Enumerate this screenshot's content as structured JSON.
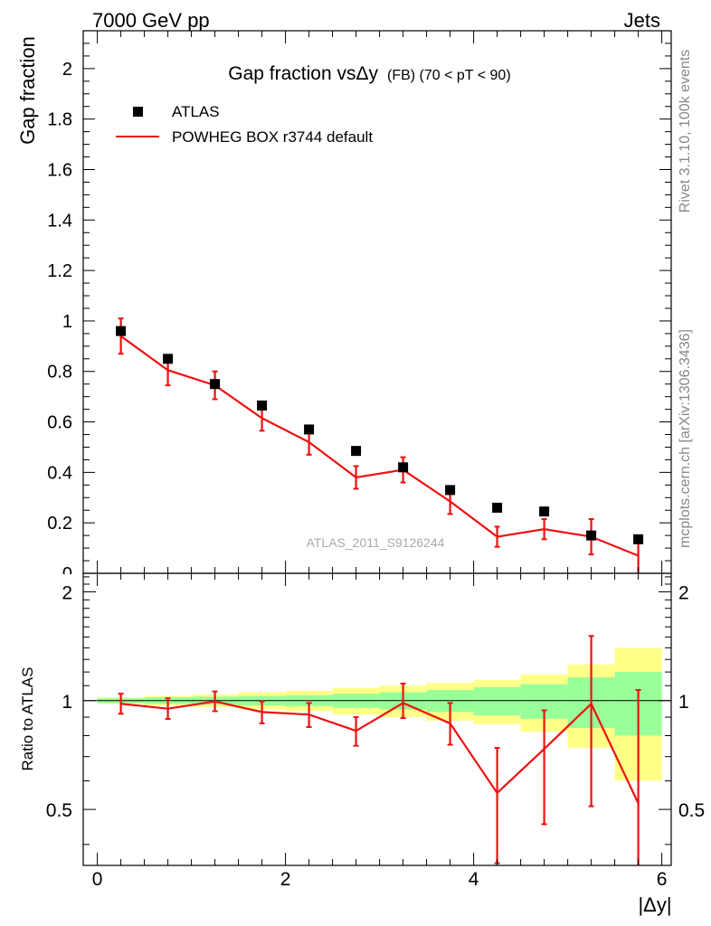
{
  "header": {
    "left": "7000 GeV pp",
    "right": "Jets"
  },
  "side_labels": {
    "rivet": "Rivet 3.1.10,  100k events",
    "mcplots": "mcplots.cern.ch [arXiv:1306.3436]"
  },
  "watermark": "ATLAS_2011_S9126244",
  "colors": {
    "mc": "#ee1111",
    "data": "#000000",
    "band_inner": "#99ff99",
    "band_outer": "#ffff88"
  },
  "chart_data": [
    {
      "type": "scatter",
      "title_main": "Gap fraction vsΔy",
      "title_suffix": "(FB) (70 < pT <  90)",
      "xlabel": "",
      "ylabel": "Gap fraction",
      "xlim": [
        -0.15,
        6.1
      ],
      "ylim": [
        0,
        2.15
      ],
      "yticks": [
        0,
        0.2,
        0.4,
        0.6,
        0.8,
        1,
        1.2,
        1.4,
        1.6,
        1.8,
        2
      ],
      "ytick_labels": [
        "0",
        "0.2",
        "0.4",
        "0.6",
        "0.8",
        "1",
        "1.2",
        "1.4",
        "1.6",
        "1.8",
        "2"
      ],
      "legend": [
        "ATLAS",
        "POWHEG BOX r3744 default"
      ],
      "legend_position": "top-left",
      "x": [
        0.25,
        0.75,
        1.25,
        1.75,
        2.25,
        2.75,
        3.25,
        3.75,
        4.25,
        4.75,
        5.25,
        5.75
      ],
      "series": [
        {
          "name": "ATLAS",
          "style": "markers",
          "values": [
            0.96,
            0.85,
            0.75,
            0.665,
            0.57,
            0.485,
            0.42,
            0.33,
            0.26,
            0.245,
            0.15,
            0.135
          ]
        },
        {
          "name": "POWHEG BOX r3744 default",
          "style": "line",
          "values": [
            0.94,
            0.805,
            0.745,
            0.615,
            0.52,
            0.38,
            0.41,
            0.285,
            0.145,
            0.175,
            0.145,
            0.07
          ],
          "err": [
            0.07,
            0.06,
            0.055,
            0.05,
            0.05,
            0.045,
            0.05,
            0.05,
            0.04,
            0.04,
            0.07,
            0.08
          ]
        }
      ]
    },
    {
      "type": "line",
      "xlabel": "|Δy|",
      "ylabel": "Ratio to ATLAS",
      "xlim": [
        -0.15,
        6.1
      ],
      "ylim": [
        0.35,
        2.25
      ],
      "log_y": true,
      "xticks": [
        0,
        2,
        4,
        6
      ],
      "xtick_labels": [
        "0",
        "2",
        "4",
        "6"
      ],
      "yticks": [
        0.5,
        1,
        2
      ],
      "ytick_labels": [
        "0.5",
        "1",
        "2"
      ],
      "bins": [
        [
          0,
          0.5
        ],
        [
          0.5,
          1
        ],
        [
          1,
          1.5
        ],
        [
          1.5,
          2
        ],
        [
          2,
          2.5
        ],
        [
          2.5,
          3
        ],
        [
          3,
          3.5
        ],
        [
          3.5,
          4
        ],
        [
          4,
          4.5
        ],
        [
          4.5,
          5
        ],
        [
          5,
          5.5
        ],
        [
          5.5,
          6
        ]
      ],
      "band_inner": [
        0.015,
        0.02,
        0.025,
        0.03,
        0.035,
        0.045,
        0.055,
        0.07,
        0.09,
        0.11,
        0.16,
        0.2
      ],
      "band_outer": [
        0.02,
        0.03,
        0.04,
        0.055,
        0.065,
        0.085,
        0.1,
        0.12,
        0.14,
        0.18,
        0.26,
        0.4
      ],
      "x": [
        0.25,
        0.75,
        1.25,
        1.75,
        2.25,
        2.75,
        3.25,
        3.75,
        4.25,
        4.75,
        5.25,
        5.75
      ],
      "series": [
        {
          "name": "POWHEG BOX r3744 default",
          "values": [
            0.98,
            0.95,
            0.995,
            0.93,
            0.915,
            0.825,
            0.985,
            0.865,
            0.555,
            0.735,
            0.98,
            0.52
          ],
          "err_low": [
            0.06,
            0.06,
            0.06,
            0.065,
            0.07,
            0.075,
            0.09,
            0.11,
            0.2,
            0.28,
            0.47,
            0.52
          ],
          "err_high": [
            0.065,
            0.065,
            0.065,
            0.065,
            0.07,
            0.075,
            0.13,
            0.12,
            0.185,
            0.205,
            0.53,
            0.55
          ]
        }
      ]
    }
  ]
}
